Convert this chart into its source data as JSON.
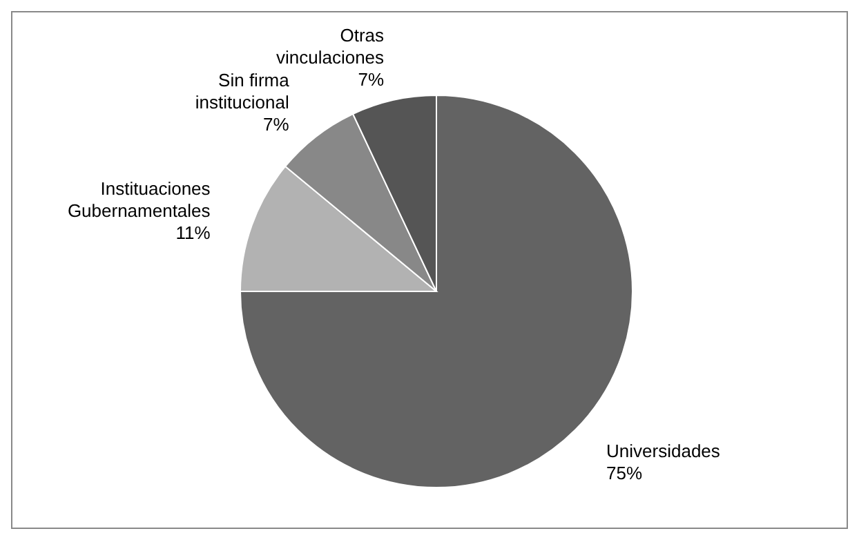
{
  "chart_data": {
    "type": "pie",
    "categories": [
      "Universidades",
      "Instituaciones Gubernamentales",
      "Sin firma institucional",
      "Otras vinculaciones"
    ],
    "values": [
      75,
      11,
      7,
      7
    ],
    "colors": [
      "#636363",
      "#b2b2b2",
      "#888888",
      "#555555"
    ],
    "value_labels": [
      "75%",
      "11%",
      "7%",
      "7%"
    ],
    "legend": false
  }
}
